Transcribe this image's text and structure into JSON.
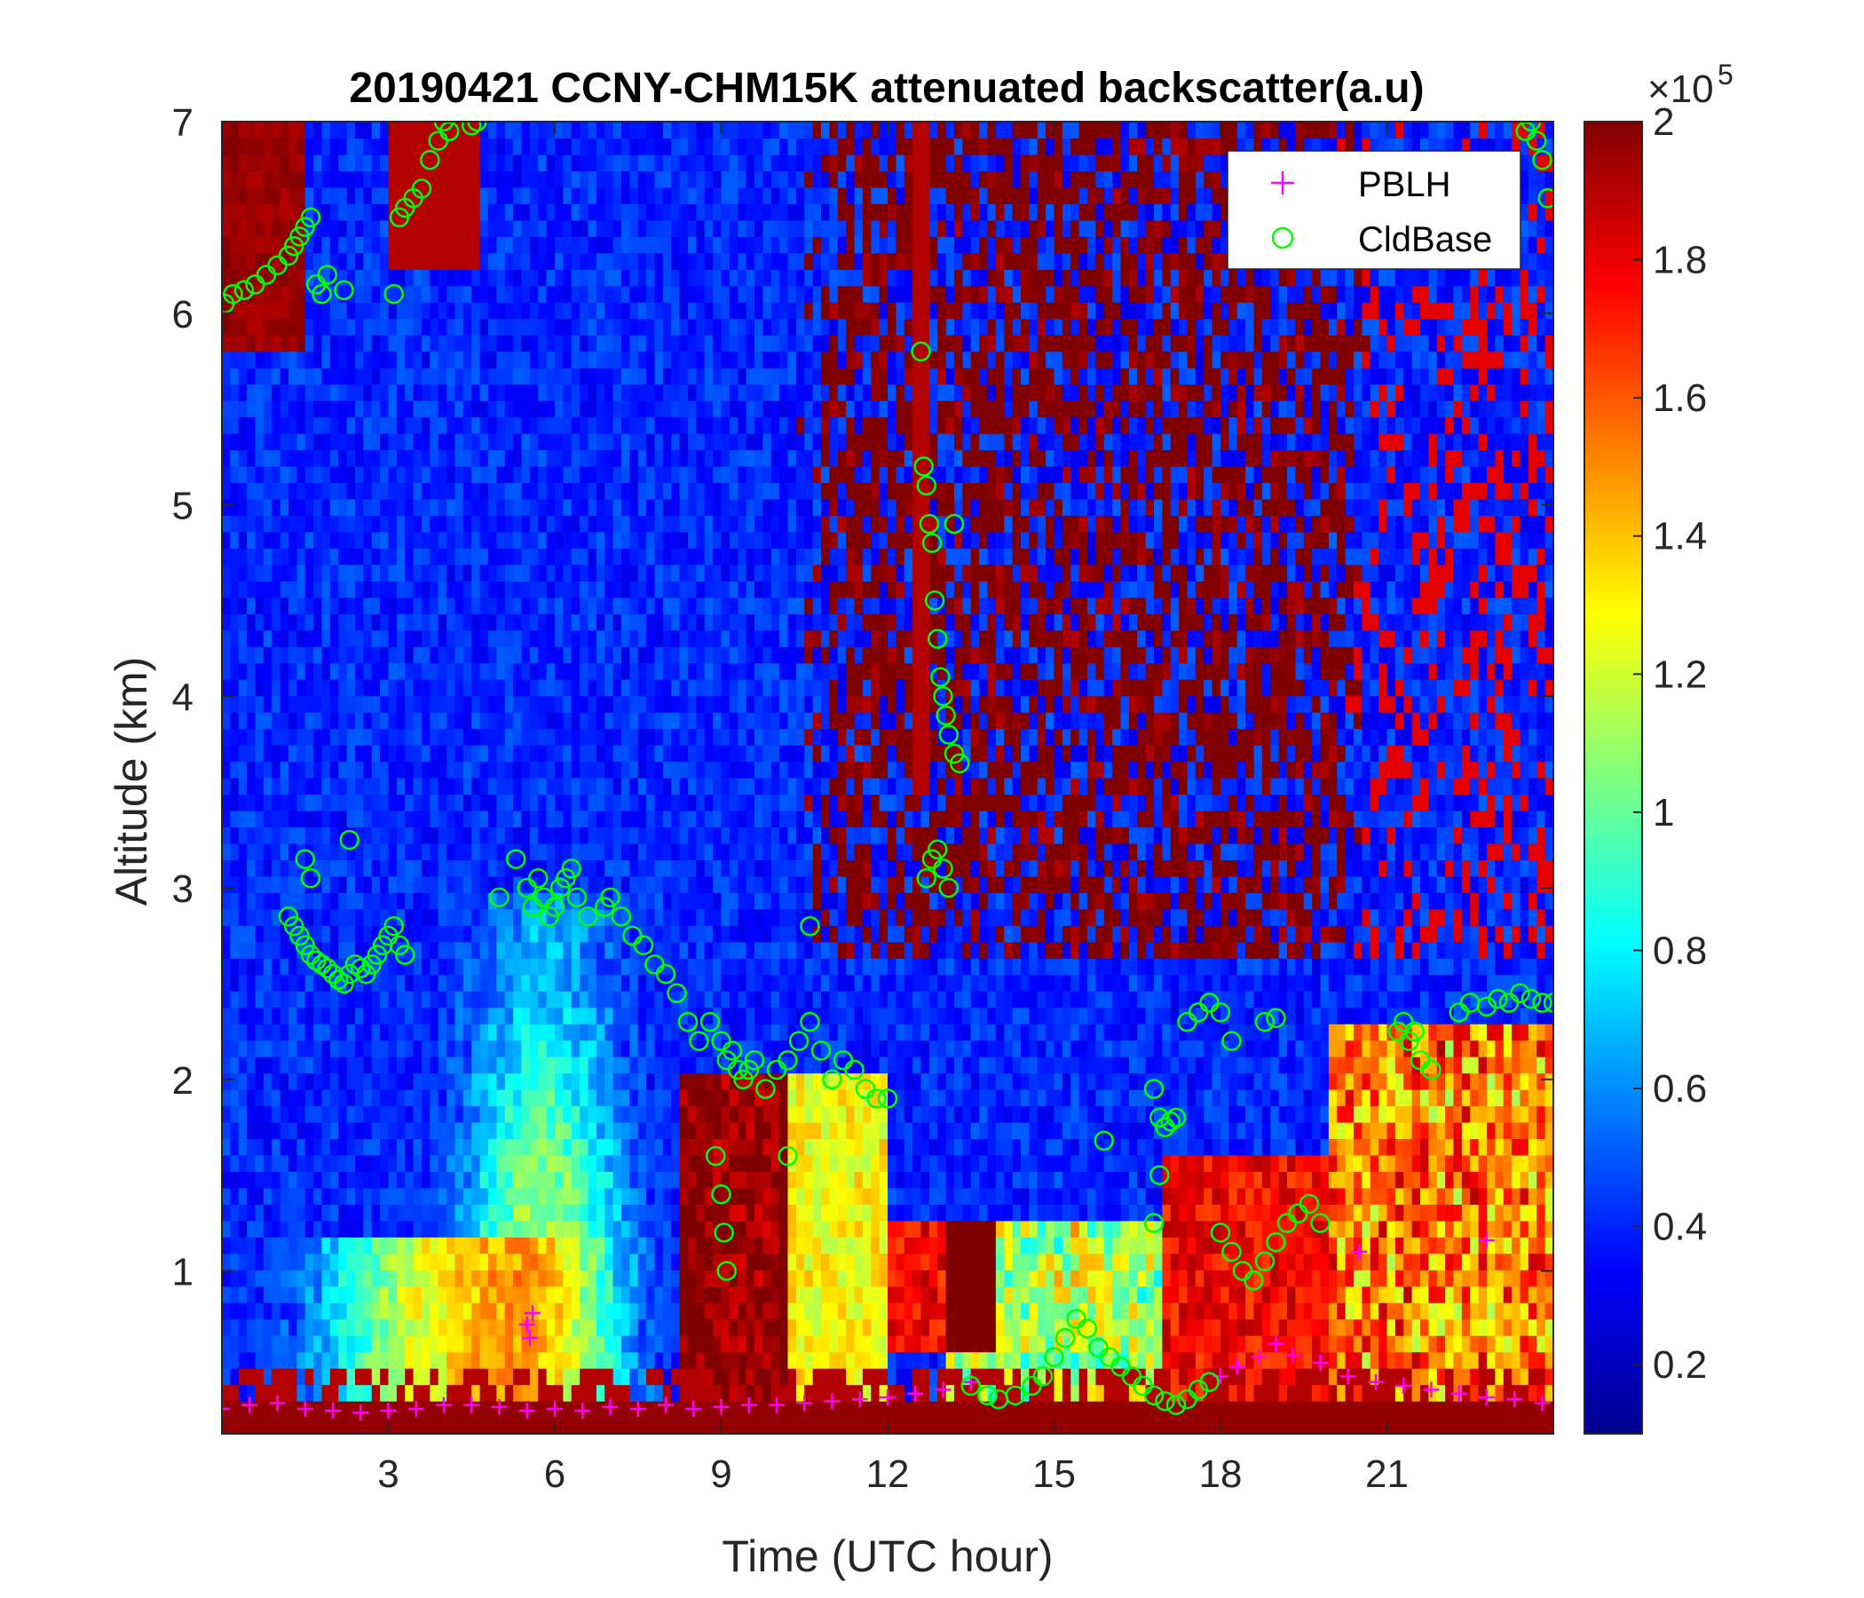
{
  "chart_data": {
    "type": "heatmap",
    "title": "20190421 CCNY-CHM15K attenuated backscatter(a.u)",
    "xlabel": "Time (UTC hour)",
    "ylabel": "Altitude (km)",
    "xlim": [
      0,
      24
    ],
    "ylim": [
      0.15,
      7
    ],
    "xticks": [
      3,
      6,
      9,
      12,
      15,
      18,
      21
    ],
    "xtick_labels": [
      "3",
      "6",
      "9",
      "12",
      "15",
      "18",
      "21"
    ],
    "yticks": [
      1,
      2,
      3,
      4,
      5,
      6,
      7
    ],
    "ytick_labels": [
      "1",
      "2",
      "3",
      "4",
      "5",
      "6",
      "7"
    ],
    "colorbar": {
      "colormap": "jet",
      "range": [
        0.1,
        2.0
      ],
      "ticks": [
        0.2,
        0.4,
        0.6,
        0.8,
        1.0,
        1.2,
        1.4,
        1.6,
        1.8,
        2.0
      ],
      "tick_labels": [
        "0.2",
        "0.4",
        "0.6",
        "0.8",
        "1",
        "1.2",
        "1.4",
        "1.6",
        "1.8",
        "2"
      ],
      "exponent_label": "×10",
      "exponent_power": "5"
    },
    "legend": {
      "placement": "top-right",
      "entries": [
        {
          "name": "PBLH",
          "marker": "+",
          "color": "#ff00ff"
        },
        {
          "name": "CldBase",
          "marker": "o",
          "color": "#00ff00"
        }
      ]
    },
    "series": [
      {
        "name": "PBLH",
        "marker": "+",
        "color": "#ff00ff",
        "x": [
          0,
          0.5,
          1,
          1.5,
          2,
          2.5,
          3,
          3.5,
          4,
          4.5,
          5,
          5.5,
          6,
          6.5,
          7,
          7.5,
          8,
          8.5,
          9,
          9.5,
          10,
          10.5,
          11,
          11.5,
          12,
          12.5,
          13,
          13.5,
          18,
          18.3,
          18.7,
          19,
          19.3,
          19.8,
          20.3,
          20.8,
          21.3,
          21.8,
          22.3,
          22.8,
          23.3,
          23.8,
          5.5,
          5.6,
          5.55,
          20.5,
          22.8
        ],
        "y": [
          0.28,
          0.3,
          0.31,
          0.28,
          0.27,
          0.26,
          0.27,
          0.28,
          0.3,
          0.3,
          0.29,
          0.27,
          0.28,
          0.27,
          0.29,
          0.28,
          0.3,
          0.28,
          0.29,
          0.3,
          0.3,
          0.31,
          0.32,
          0.33,
          0.34,
          0.36,
          0.38,
          0.42,
          0.45,
          0.5,
          0.55,
          0.62,
          0.56,
          0.52,
          0.45,
          0.42,
          0.4,
          0.38,
          0.36,
          0.34,
          0.33,
          0.31,
          0.72,
          0.78,
          0.65,
          1.1,
          1.16
        ]
      },
      {
        "name": "CldBase",
        "marker": "o",
        "color": "#00ff00",
        "x": [
          0.05,
          0.2,
          0.4,
          0.6,
          0.8,
          1.0,
          1.2,
          1.3,
          1.4,
          1.5,
          1.6,
          1.7,
          1.8,
          1.9,
          2.2,
          3.1,
          3.2,
          3.3,
          3.45,
          3.6,
          3.75,
          3.9,
          4.0,
          4.1,
          4.5,
          4.6,
          1.2,
          1.3,
          1.4,
          1.5,
          1.6,
          1.7,
          1.8,
          1.9,
          2.0,
          2.1,
          2.2,
          2.3,
          2.4,
          2.5,
          2.6,
          2.7,
          2.8,
          2.9,
          3.0,
          3.1,
          3.2,
          3.3,
          1.5,
          1.6,
          2.3,
          5.0,
          5.3,
          5.5,
          5.6,
          5.7,
          5.8,
          5.9,
          6.0,
          6.1,
          6.2,
          6.3,
          6.4,
          6.6,
          6.9,
          7.0,
          7.2,
          7.4,
          7.6,
          7.8,
          8.0,
          8.2,
          8.4,
          8.6,
          8.8,
          9.0,
          9.1,
          9.2,
          9.3,
          9.4,
          9.5,
          9.6,
          9.8,
          10.0,
          10.2,
          10.4,
          10.6,
          10.8,
          11.0,
          11.2,
          11.4,
          11.6,
          11.8,
          12.0,
          8.9,
          9.0,
          9.05,
          9.1,
          10.2,
          10.6,
          12.6,
          12.65,
          12.7,
          12.75,
          12.8,
          12.85,
          12.9,
          12.95,
          13.0,
          13.05,
          13.1,
          13.2,
          13.3,
          12.7,
          12.8,
          12.9,
          13.0,
          13.1,
          13.2,
          13.5,
          13.8,
          14.0,
          14.3,
          14.6,
          14.8,
          15.0,
          15.2,
          15.4,
          15.6,
          15.8,
          16.0,
          16.2,
          16.4,
          16.6,
          16.8,
          17.0,
          17.2,
          17.4,
          17.6,
          17.8,
          15.9,
          16.8,
          16.9,
          16.8,
          16.9,
          17.0,
          17.1,
          17.2,
          17.4,
          17.6,
          17.8,
          18.0,
          18.2,
          18.0,
          18.2,
          18.4,
          18.6,
          18.8,
          19.0,
          19.2,
          19.4,
          19.6,
          19.8,
          18.8,
          19.0,
          21.2,
          21.4,
          21.6,
          21.8,
          21.3,
          21.5,
          22.3,
          22.5,
          22.8,
          23.0,
          23.2,
          23.4,
          23.6,
          23.8,
          23.5,
          23.6,
          23.7,
          23.8,
          23.9,
          24.0
        ],
        "y": [
          6.05,
          6.1,
          6.12,
          6.15,
          6.2,
          6.25,
          6.3,
          6.35,
          6.4,
          6.45,
          6.5,
          6.15,
          6.1,
          6.2,
          6.12,
          6.1,
          6.5,
          6.55,
          6.6,
          6.65,
          6.8,
          6.9,
          7.0,
          6.95,
          6.98,
          7.0,
          2.85,
          2.8,
          2.75,
          2.7,
          2.65,
          2.62,
          2.6,
          2.58,
          2.55,
          2.52,
          2.5,
          2.55,
          2.6,
          2.58,
          2.55,
          2.6,
          2.65,
          2.7,
          2.75,
          2.8,
          2.7,
          2.65,
          3.15,
          3.05,
          3.25,
          2.95,
          3.15,
          3.0,
          2.9,
          3.05,
          2.95,
          2.85,
          2.9,
          3.0,
          3.05,
          3.1,
          2.95,
          2.85,
          2.9,
          2.95,
          2.85,
          2.75,
          2.7,
          2.6,
          2.55,
          2.45,
          2.3,
          2.2,
          2.3,
          2.2,
          2.1,
          2.15,
          2.05,
          2.0,
          2.05,
          2.1,
          1.95,
          2.05,
          2.1,
          2.2,
          2.3,
          2.15,
          2.0,
          2.1,
          2.05,
          1.95,
          1.9,
          1.9,
          1.6,
          1.4,
          1.2,
          1.0,
          1.6,
          2.8,
          5.8,
          5.2,
          5.1,
          4.9,
          4.8,
          4.5,
          4.3,
          4.1,
          4.0,
          3.9,
          3.8,
          3.7,
          3.65,
          3.05,
          3.15,
          3.2,
          3.1,
          3.0,
          4.9,
          0.4,
          0.35,
          0.33,
          0.35,
          0.4,
          0.45,
          0.55,
          0.65,
          0.75,
          0.7,
          0.6,
          0.55,
          0.5,
          0.45,
          0.4,
          0.35,
          0.32,
          0.3,
          0.33,
          0.38,
          0.42,
          1.68,
          1.25,
          1.5,
          1.95,
          1.8,
          1.75,
          1.78,
          1.8,
          2.3,
          2.35,
          2.4,
          2.35,
          2.2,
          1.2,
          1.1,
          1.0,
          0.95,
          1.05,
          1.15,
          1.25,
          1.3,
          1.35,
          1.25,
          2.3,
          2.32,
          2.25,
          2.2,
          2.1,
          2.05,
          2.3,
          2.25,
          2.35,
          2.4,
          2.38,
          2.42,
          2.4,
          2.45,
          2.42,
          2.4,
          6.95,
          7.0,
          6.9,
          6.8,
          6.6,
          2.4
        ]
      }
    ]
  }
}
